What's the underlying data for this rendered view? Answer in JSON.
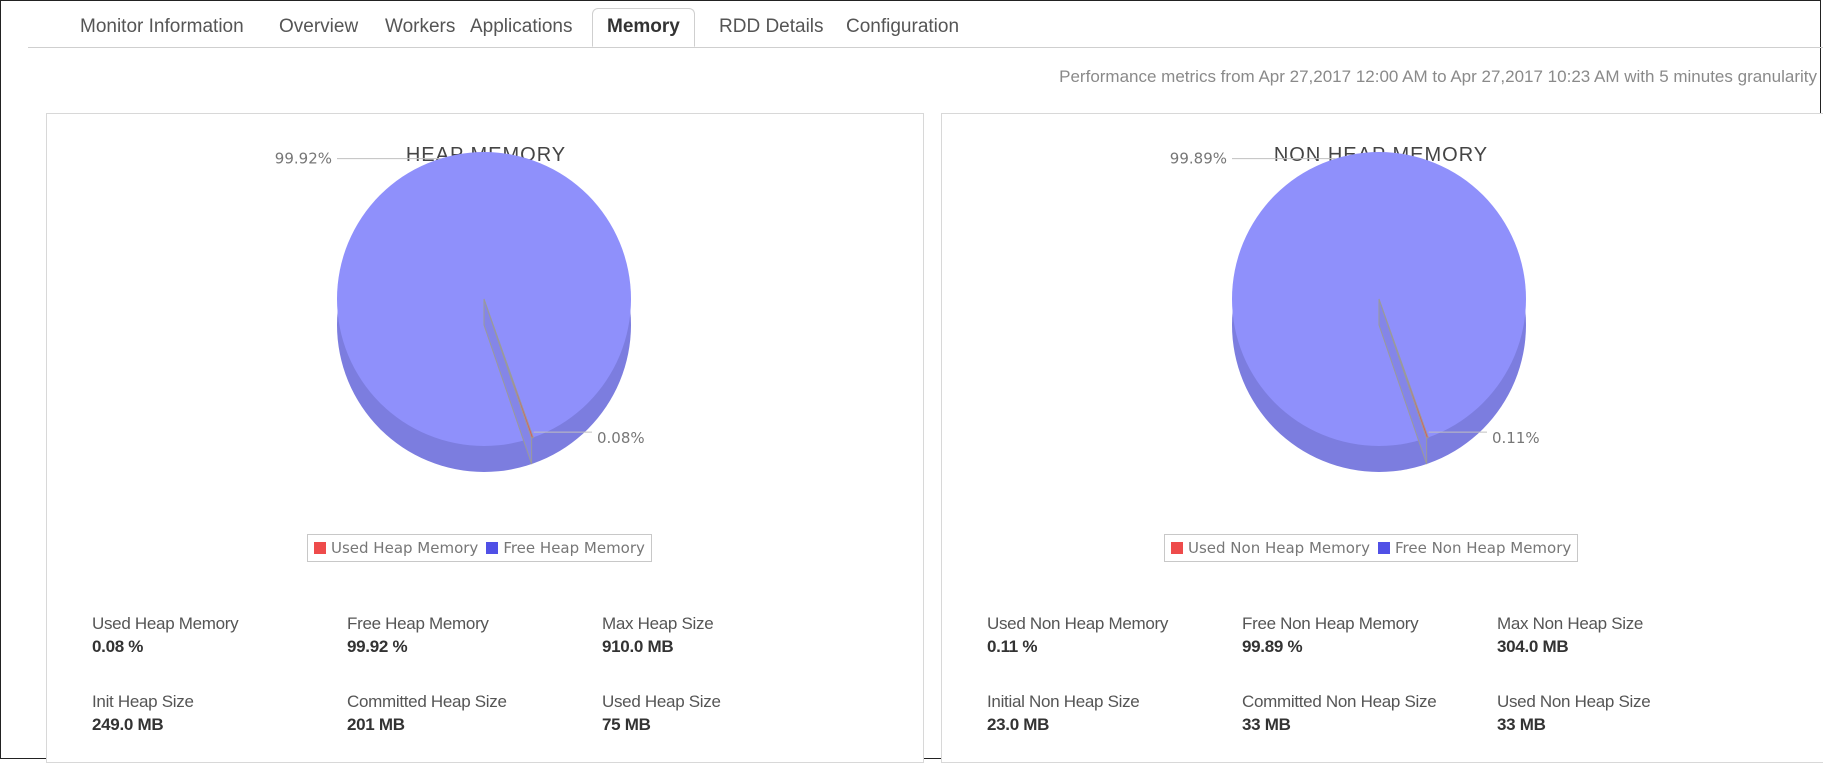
{
  "tabs": [
    {
      "label": "Monitor Information"
    },
    {
      "label": "Overview"
    },
    {
      "label": "Workers"
    },
    {
      "label": "Applications"
    },
    {
      "label": "Memory"
    },
    {
      "label": "RDD Details"
    },
    {
      "label": "Configuration"
    }
  ],
  "active_tab": "Memory",
  "performance_text": "Performance metrics from Apr 27,2017 12:00 AM to Apr 27,2017 10:23 AM with 5 minutes granularity",
  "colors": {
    "used": "#ee4b4b",
    "free": "#5050e6",
    "pie_top": "#8f90fb",
    "pie_side": "#7c7ddf"
  },
  "heap": {
    "title": "HEAP MEMORY",
    "legend": [
      "Used Heap Memory",
      "Free Heap Memory"
    ],
    "stats": [
      {
        "label": "Used Heap Memory",
        "value": "0.08 %"
      },
      {
        "label": "Free Heap Memory",
        "value": "99.92 %"
      },
      {
        "label": "Max Heap Size",
        "value": "910.0 MB"
      },
      {
        "label": "Init Heap Size",
        "value": "249.0 MB"
      },
      {
        "label": "Committed Heap Size",
        "value": "201 MB"
      },
      {
        "label": "Used Heap Size",
        "value": "75 MB"
      }
    ]
  },
  "nonheap": {
    "title": "NON HEAP MEMORY",
    "legend": [
      "Used Non Heap Memory",
      "Free Non Heap Memory"
    ],
    "stats": [
      {
        "label": "Used Non Heap Memory",
        "value": "0.11 %"
      },
      {
        "label": "Free Non Heap Memory",
        "value": "99.89 %"
      },
      {
        "label": "Max Non Heap Size",
        "value": "304.0 MB"
      },
      {
        "label": "Initial Non Heap Size",
        "value": "23.0 MB"
      },
      {
        "label": "Committed Non Heap Size",
        "value": "33 MB"
      },
      {
        "label": "Used Non Heap Size",
        "value": "33 MB"
      }
    ]
  },
  "chart_data": [
    {
      "type": "pie",
      "title": "HEAP MEMORY",
      "categories": [
        "Used Heap Memory",
        "Free Heap Memory"
      ],
      "values": [
        0.08,
        99.92
      ],
      "data_labels": [
        "0.08%",
        "99.92%"
      ],
      "legend": "bottom"
    },
    {
      "type": "pie",
      "title": "NON HEAP MEMORY",
      "categories": [
        "Used Non Heap Memory",
        "Free Non Heap Memory"
      ],
      "values": [
        0.11,
        99.89
      ],
      "data_labels": [
        "0.11%",
        "99.89%"
      ],
      "legend": "bottom"
    }
  ]
}
